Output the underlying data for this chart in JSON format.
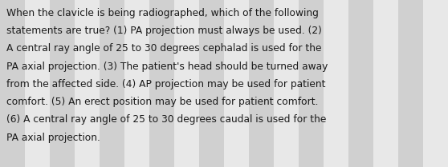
{
  "text": "When the clavicle is being radiographed, which of the following statements are true? (1) PA projection must always be used. (2) A central ray angle of 25 to 30 degrees cephalad is used for the PA axial projection. (3) The patient's head should be turned away from the affected side. (4) AP projection may be used for patient comfort. (5) An erect position may be used for patient comfort. (6) A central ray angle of 25 to 30 degrees caudal is used for the PA axial projection.",
  "bg_color": "#e2e2e2",
  "stripe_color": "#d0d0d0",
  "stripe_light": "#e8e8e8",
  "text_color": "#1a1a1a",
  "font_size": 8.8,
  "fig_width": 5.58,
  "fig_height": 2.09,
  "dpi": 100,
  "num_stripes": 18,
  "lines": [
    "When the clavicle is being radiographed, which of the following",
    "statements are true? (1) PA projection must always be used. (2)",
    "A central ray angle of 25 to 30 degrees cephalad is used for the",
    "PA axial projection. (3) The patient's head should be turned away",
    "from the affected side. (4) AP projection may be used for patient",
    "comfort. (5) An erect position may be used for patient comfort.",
    "(6) A central ray angle of 25 to 30 degrees caudal is used for the",
    "PA axial projection."
  ]
}
